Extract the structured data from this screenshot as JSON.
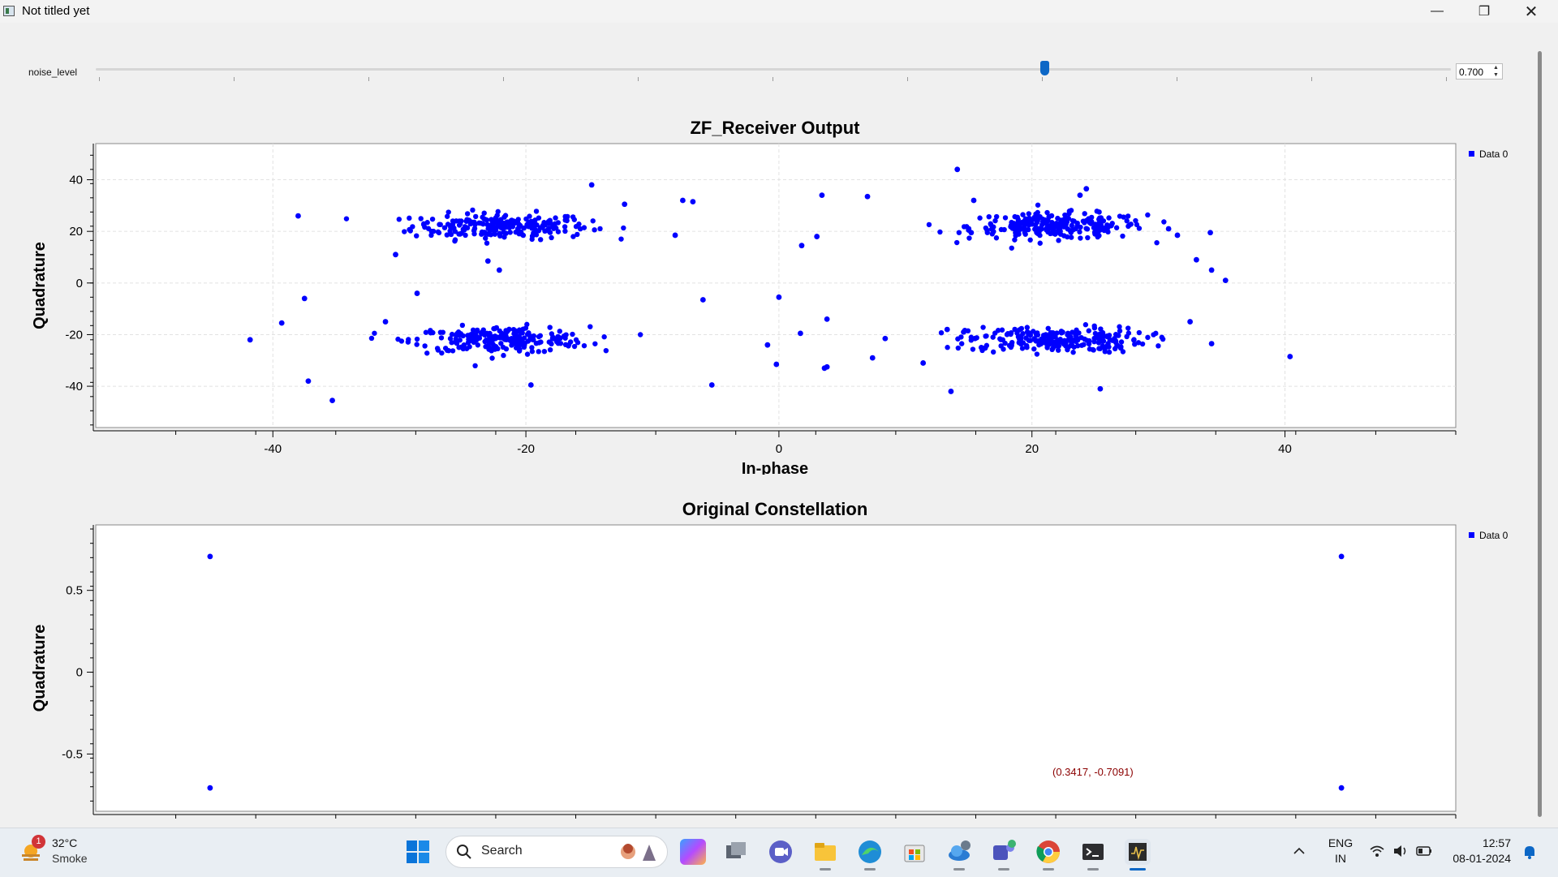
{
  "window": {
    "title": "Not titled yet",
    "minimize": "—",
    "maximize": "❐",
    "close": "✕"
  },
  "slider": {
    "label": "noise_level",
    "value": "0.700",
    "fraction": 0.7,
    "up": "▲",
    "down": "▼"
  },
  "colors": {
    "series": "#0000ff",
    "accent": "#0c67c6",
    "readout": "#8b0000"
  },
  "chart_data": [
    {
      "type": "scatter",
      "title": "ZF_Receiver Output",
      "xlabel": "In-phase",
      "ylabel": "Quadrature",
      "xlim": [
        -54,
        53.5
      ],
      "ylim": [
        -56,
        54
      ],
      "xticks": [
        -40,
        -20,
        0,
        20,
        40
      ],
      "yticks": [
        40,
        20,
        0,
        -20,
        -40
      ],
      "grid": true,
      "legend": {
        "position": "top-right",
        "entries": [
          "Data 0"
        ]
      },
      "clusters": [
        {
          "center": [
            -22,
            22
          ],
          "spread": [
            3.5,
            2.5
          ]
        },
        {
          "center": [
            22,
            22
          ],
          "spread": [
            3.5,
            2.5
          ]
        },
        {
          "center": [
            -22,
            -22
          ],
          "spread": [
            3.5,
            2.5
          ]
        },
        {
          "center": [
            22,
            -22
          ],
          "spread": [
            3.5,
            2.5
          ]
        }
      ],
      "series": [
        {
          "name": "Data 0",
          "points": [
            [
              -38,
              26
            ],
            [
              -37.5,
              -6
            ],
            [
              -37.2,
              -38
            ],
            [
              -35.3,
              -45.5
            ],
            [
              -39.3,
              -15.5
            ],
            [
              -41.8,
              -22
            ],
            [
              -30.3,
              11
            ],
            [
              -28.6,
              -4
            ],
            [
              -31.1,
              -15
            ],
            [
              -14.8,
              38
            ],
            [
              -12.2,
              30.5
            ],
            [
              -23,
              8.5
            ],
            [
              -22.1,
              5
            ],
            [
              -19.6,
              -39.5
            ],
            [
              -7.6,
              32
            ],
            [
              -6.8,
              31.5
            ],
            [
              -8.2,
              18.5
            ],
            [
              -6,
              -6.5
            ],
            [
              -5.3,
              -39.5
            ],
            [
              -0.9,
              -24
            ],
            [
              -0.2,
              -31.5
            ],
            [
              0,
              -5.5
            ],
            [
              1.7,
              -19.5
            ],
            [
              1.8,
              14.5
            ],
            [
              3,
              18
            ],
            [
              3.4,
              34
            ],
            [
              3.6,
              -33
            ],
            [
              3.8,
              -32.5
            ],
            [
              3.8,
              -14
            ],
            [
              7,
              33.5
            ],
            [
              7.4,
              -29
            ],
            [
              8.4,
              -21.5
            ],
            [
              11.4,
              -31
            ],
            [
              13.6,
              -42
            ],
            [
              14.1,
              44
            ],
            [
              14.6,
              -19
            ],
            [
              15,
              20.5
            ],
            [
              15.2,
              19.5
            ],
            [
              15.4,
              32
            ],
            [
              15.5,
              -21.5
            ],
            [
              16,
              -25
            ],
            [
              16.3,
              -25.2
            ],
            [
              32.5,
              -15
            ],
            [
              33,
              9
            ],
            [
              34.1,
              19.5
            ],
            [
              34.2,
              -23.5
            ],
            [
              34.2,
              5
            ],
            [
              35.3,
              1
            ],
            [
              40.4,
              -28.5
            ],
            [
              30.8,
              21
            ],
            [
              31.5,
              18.5
            ],
            [
              25.4,
              -41
            ],
            [
              24.3,
              36.5
            ],
            [
              23.8,
              34
            ],
            [
              13.3,
              -18
            ]
          ]
        }
      ]
    },
    {
      "type": "scatter",
      "title": "Original Constellation",
      "xlabel": "",
      "ylabel": "Quadrature",
      "xlim": [
        -0.85,
        0.85
      ],
      "ylim": [
        -0.85,
        0.9
      ],
      "yticks": [
        0.5,
        0,
        -0.5
      ],
      "ytick_labels": [
        "0.5",
        "0",
        "-0.5"
      ],
      "grid": false,
      "legend": {
        "position": "top-right",
        "entries": [
          "Data 0"
        ]
      },
      "series": [
        {
          "name": "Data 0",
          "points": [
            [
              -0.7071,
              0.7071
            ],
            [
              0.7071,
              0.7071
            ],
            [
              -0.7071,
              -0.7071
            ],
            [
              0.7071,
              -0.7071
            ]
          ]
        }
      ],
      "readout": "(0.3417, -0.7091)"
    }
  ],
  "taskbar": {
    "weather": {
      "badge": "1",
      "temp": "32°C",
      "condition": "Smoke"
    },
    "search_label": "Search",
    "apps": [
      "copilot",
      "task-view",
      "meet",
      "file-explorer",
      "edge",
      "store",
      "onedrive",
      "teams",
      "chrome",
      "terminal",
      "scope"
    ],
    "tray": {
      "lang_top": "ENG",
      "lang_bottom": "IN",
      "time": "12:57",
      "date": "08-01-2024"
    }
  }
}
